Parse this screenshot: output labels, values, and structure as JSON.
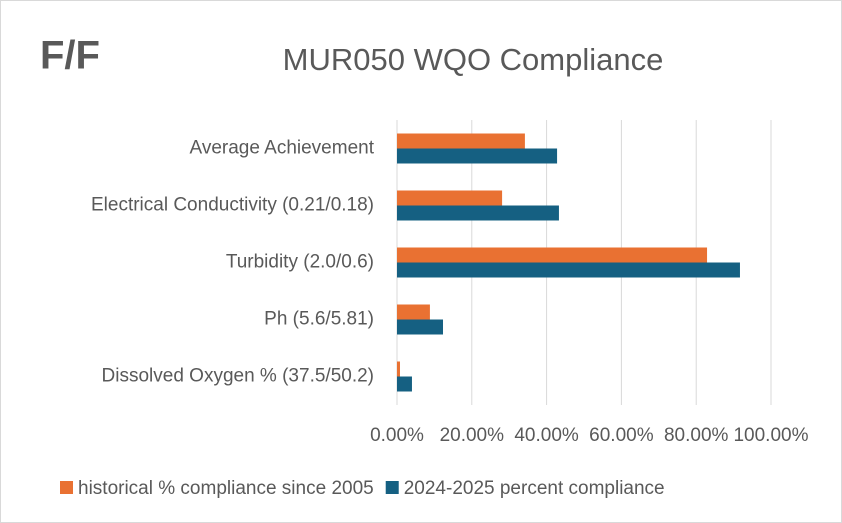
{
  "chart_data": {
    "type": "hbar",
    "annotation": "F/F",
    "title": "MUR050 WQO Compliance",
    "categories": [
      "Average Achievement",
      "Electrical Conductivity (0.21/0.18)",
      "Turbidity (2.0/0.6)",
      "Ph (5.6/5.81)",
      "Dissolved Oxygen % (37.5/50.2)"
    ],
    "series": [
      {
        "name": "historical % compliance since 2005",
        "color": "#e97132",
        "values": [
          34.2,
          28.1,
          82.9,
          8.8,
          0.8
        ]
      },
      {
        "name": "2024-2025 percent compliance",
        "color": "#156082",
        "values": [
          42.8,
          43.3,
          91.7,
          12.3,
          4.0
        ]
      }
    ],
    "xlim": [
      0,
      100
    ],
    "xticks": [
      {
        "value": 0,
        "label": "0.00%"
      },
      {
        "value": 20,
        "label": "20.00%"
      },
      {
        "value": 40,
        "label": "40.00%"
      },
      {
        "value": 60,
        "label": "60.00%"
      },
      {
        "value": 80,
        "label": "80.00%"
      },
      {
        "value": 100,
        "label": "100.00%"
      }
    ],
    "grid": true,
    "legend": "bottom"
  }
}
